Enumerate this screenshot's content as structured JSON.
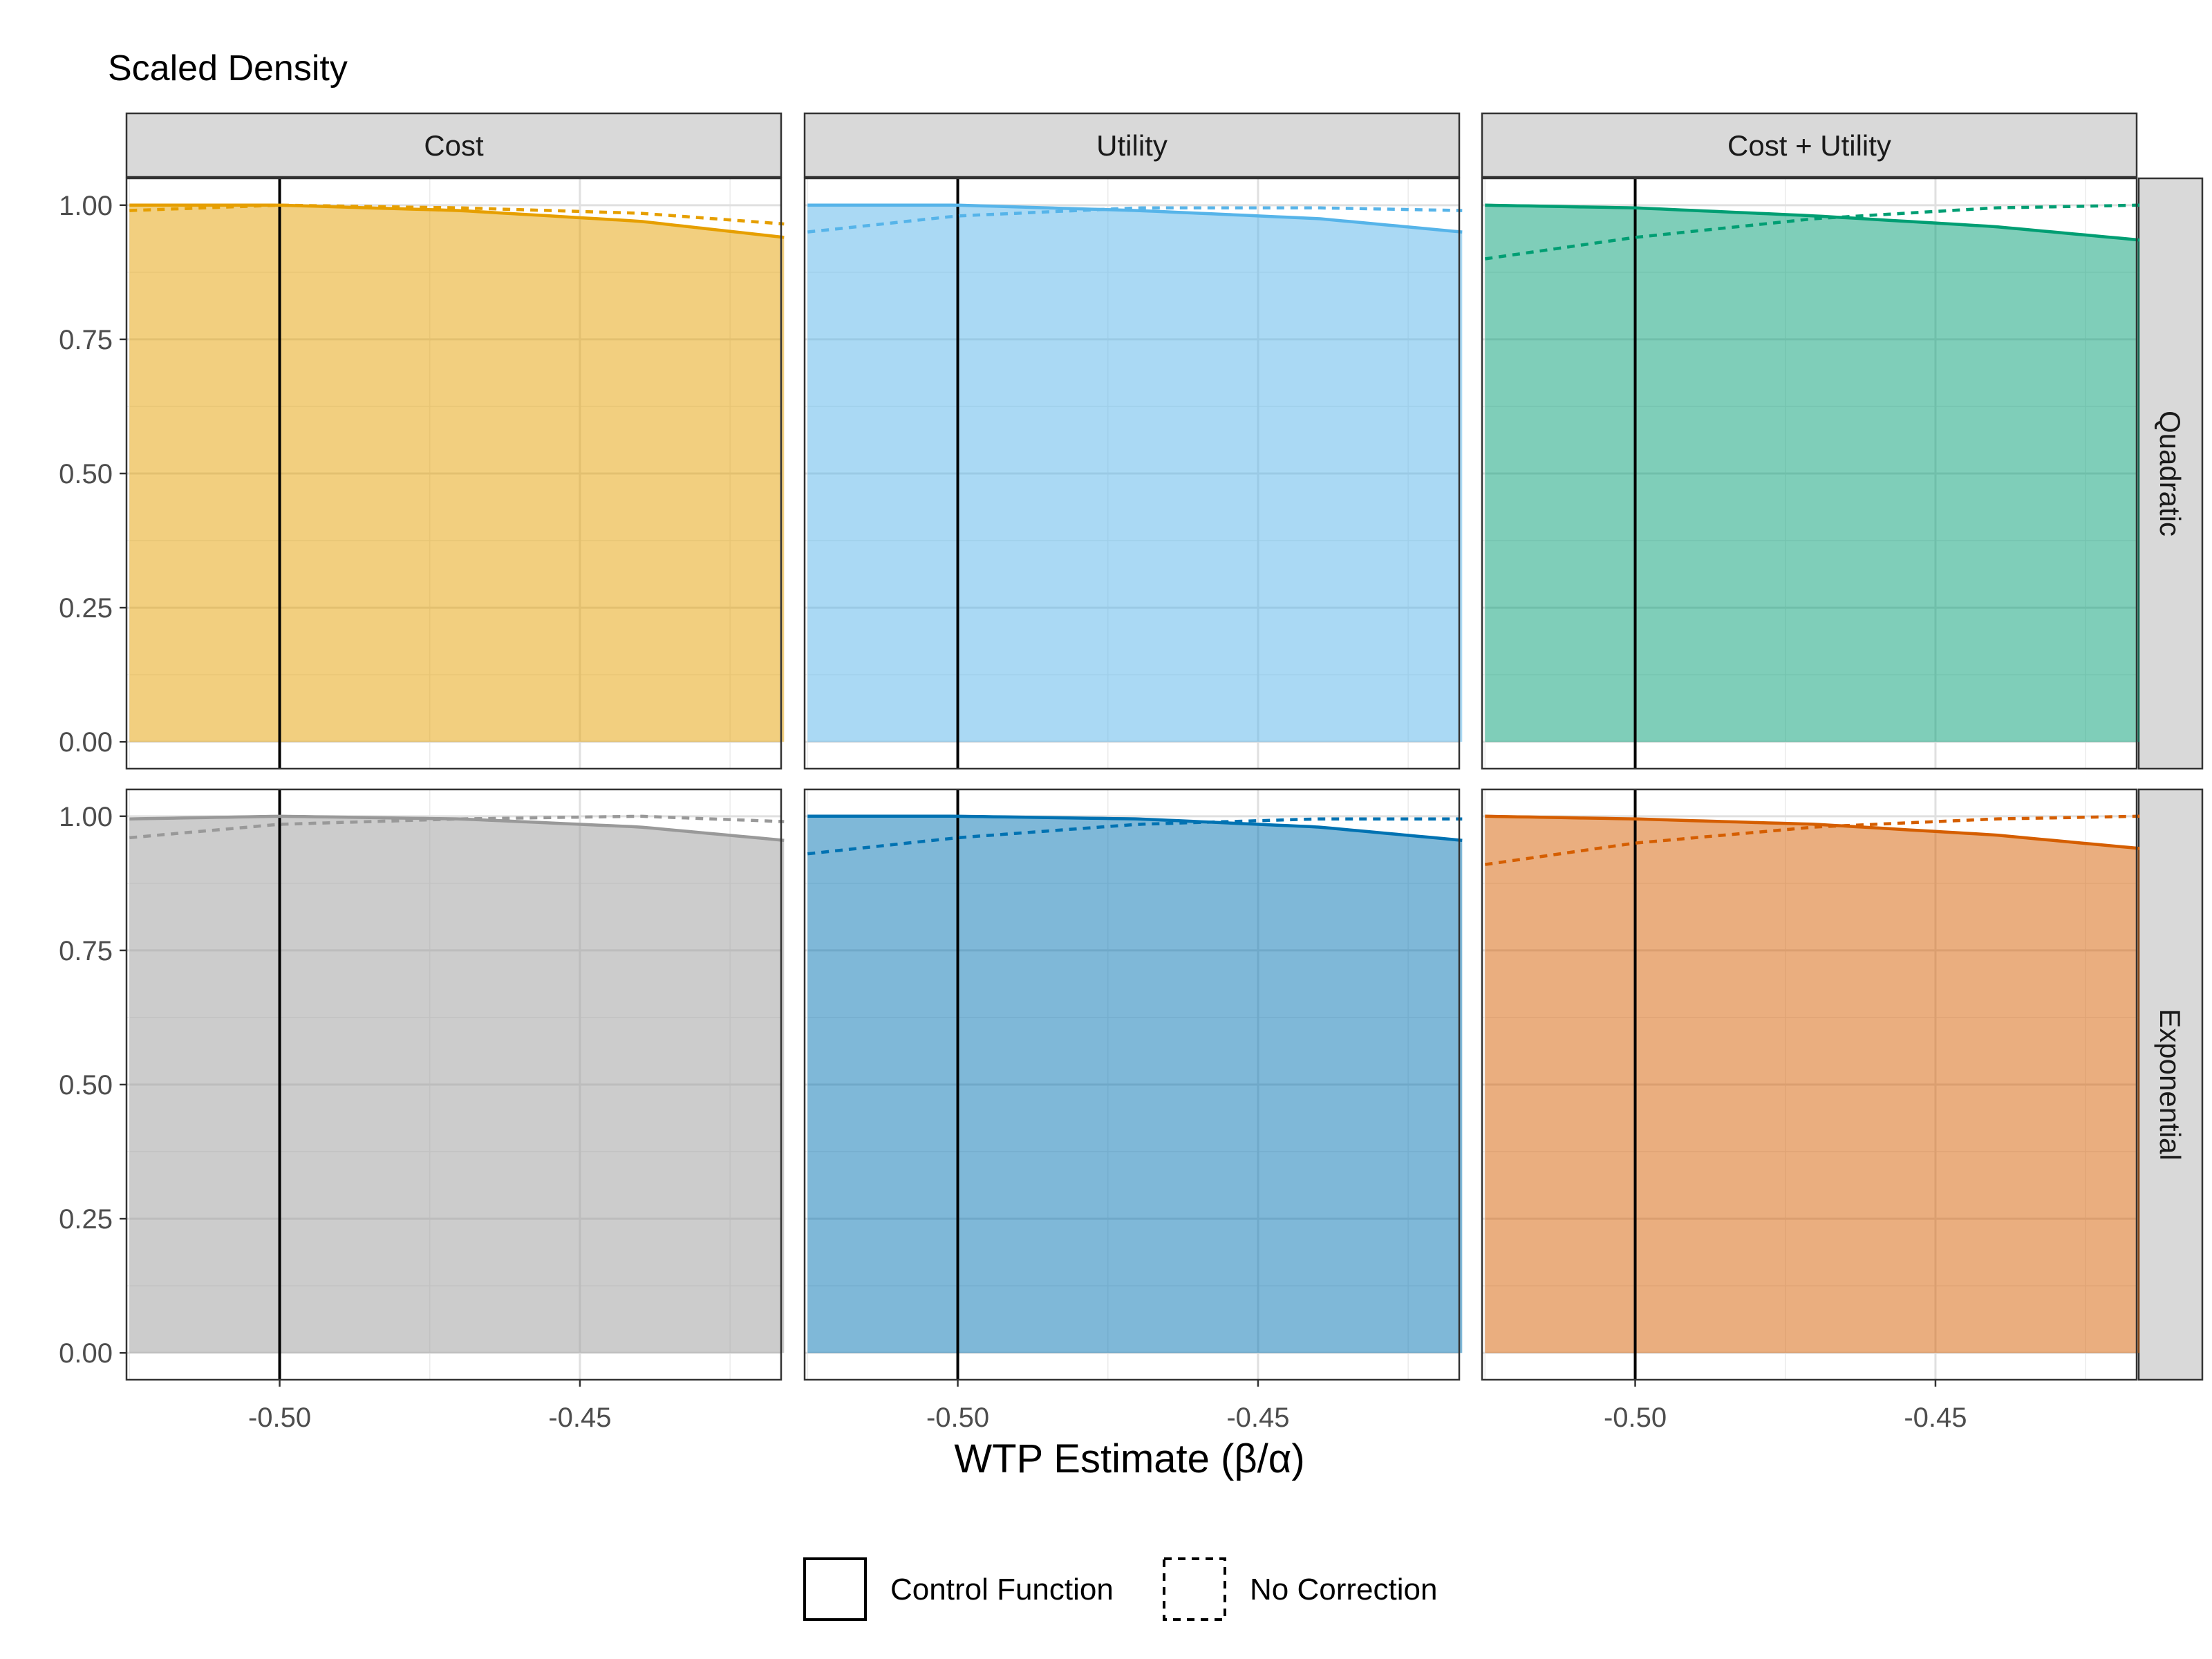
{
  "chart_data": {
    "type": "area",
    "ylabel": "Scaled Density",
    "xlabel": "WTP Estimate (β/α)",
    "xlim": [
      -0.5255,
      -0.4165
    ],
    "ylim": [
      -0.05,
      1.05
    ],
    "x_ticks": [
      -0.5,
      -0.45
    ],
    "x_tick_labels": [
      "-0.50",
      "-0.45"
    ],
    "y_ticks": [
      0.0,
      0.25,
      0.5,
      0.75,
      1.0
    ],
    "y_tick_labels": [
      "0.00",
      "0.25",
      "0.50",
      "0.75",
      "1.00"
    ],
    "reference_line_x": -0.5,
    "grid": true,
    "x_range": [
      -0.525,
      -0.416
    ],
    "columns": [
      "Cost",
      "Utility",
      "Cost + Utility"
    ],
    "rows": [
      "Quadratic",
      "Exponential"
    ],
    "legend": {
      "position": "bottom",
      "entries": [
        {
          "label": "Control Function",
          "linetype": "solid"
        },
        {
          "label": "No Correction",
          "linetype": "dashed"
        }
      ]
    },
    "panels": [
      {
        "row": "Quadratic",
        "column": "Cost",
        "color": "#E69F00",
        "series": [
          {
            "name": "Control Function",
            "x": [
              -0.525,
              -0.5,
              -0.47,
              -0.44,
              -0.416
            ],
            "y": [
              1.0,
              1.0,
              0.99,
              0.97,
              0.94
            ]
          },
          {
            "name": "No Correction",
            "x": [
              -0.525,
              -0.5,
              -0.47,
              -0.44,
              -0.416
            ],
            "y": [
              0.99,
              1.0,
              0.995,
              0.985,
              0.965
            ]
          }
        ]
      },
      {
        "row": "Quadratic",
        "column": "Utility",
        "color": "#56B4E9",
        "series": [
          {
            "name": "Control Function",
            "x": [
              -0.525,
              -0.5,
              -0.47,
              -0.44,
              -0.416
            ],
            "y": [
              1.0,
              1.0,
              0.99,
              0.975,
              0.95
            ]
          },
          {
            "name": "No Correction",
            "x": [
              -0.525,
              -0.5,
              -0.47,
              -0.44,
              -0.416
            ],
            "y": [
              0.95,
              0.98,
              0.995,
              0.995,
              0.99
            ]
          }
        ]
      },
      {
        "row": "Quadratic",
        "column": "Cost + Utility",
        "color": "#009E73",
        "series": [
          {
            "name": "Control Function",
            "x": [
              -0.525,
              -0.5,
              -0.47,
              -0.44,
              -0.416
            ],
            "y": [
              1.0,
              0.995,
              0.98,
              0.96,
              0.935
            ]
          },
          {
            "name": "No Correction",
            "x": [
              -0.525,
              -0.5,
              -0.47,
              -0.44,
              -0.416
            ],
            "y": [
              0.9,
              0.94,
              0.975,
              0.995,
              1.0
            ]
          }
        ]
      },
      {
        "row": "Exponential",
        "column": "Cost",
        "color": "#999999",
        "series": [
          {
            "name": "Control Function",
            "x": [
              -0.525,
              -0.5,
              -0.47,
              -0.44,
              -0.416
            ],
            "y": [
              0.995,
              1.0,
              0.995,
              0.98,
              0.955
            ]
          },
          {
            "name": "No Correction",
            "x": [
              -0.525,
              -0.5,
              -0.47,
              -0.44,
              -0.416
            ],
            "y": [
              0.96,
              0.985,
              0.995,
              1.0,
              0.99
            ]
          }
        ]
      },
      {
        "row": "Exponential",
        "column": "Utility",
        "color": "#0072B2",
        "series": [
          {
            "name": "Control Function",
            "x": [
              -0.525,
              -0.5,
              -0.47,
              -0.44,
              -0.416
            ],
            "y": [
              1.0,
              1.0,
              0.995,
              0.98,
              0.955
            ]
          },
          {
            "name": "No Correction",
            "x": [
              -0.525,
              -0.5,
              -0.47,
              -0.44,
              -0.416
            ],
            "y": [
              0.93,
              0.96,
              0.985,
              0.995,
              0.995
            ]
          }
        ]
      },
      {
        "row": "Exponential",
        "column": "Cost + Utility",
        "color": "#D55E00",
        "series": [
          {
            "name": "Control Function",
            "x": [
              -0.525,
              -0.5,
              -0.47,
              -0.44,
              -0.416
            ],
            "y": [
              1.0,
              0.995,
              0.985,
              0.965,
              0.94
            ]
          },
          {
            "name": "No Correction",
            "x": [
              -0.525,
              -0.5,
              -0.47,
              -0.44,
              -0.416
            ],
            "y": [
              0.91,
              0.95,
              0.98,
              0.995,
              1.0
            ]
          }
        ]
      }
    ]
  }
}
